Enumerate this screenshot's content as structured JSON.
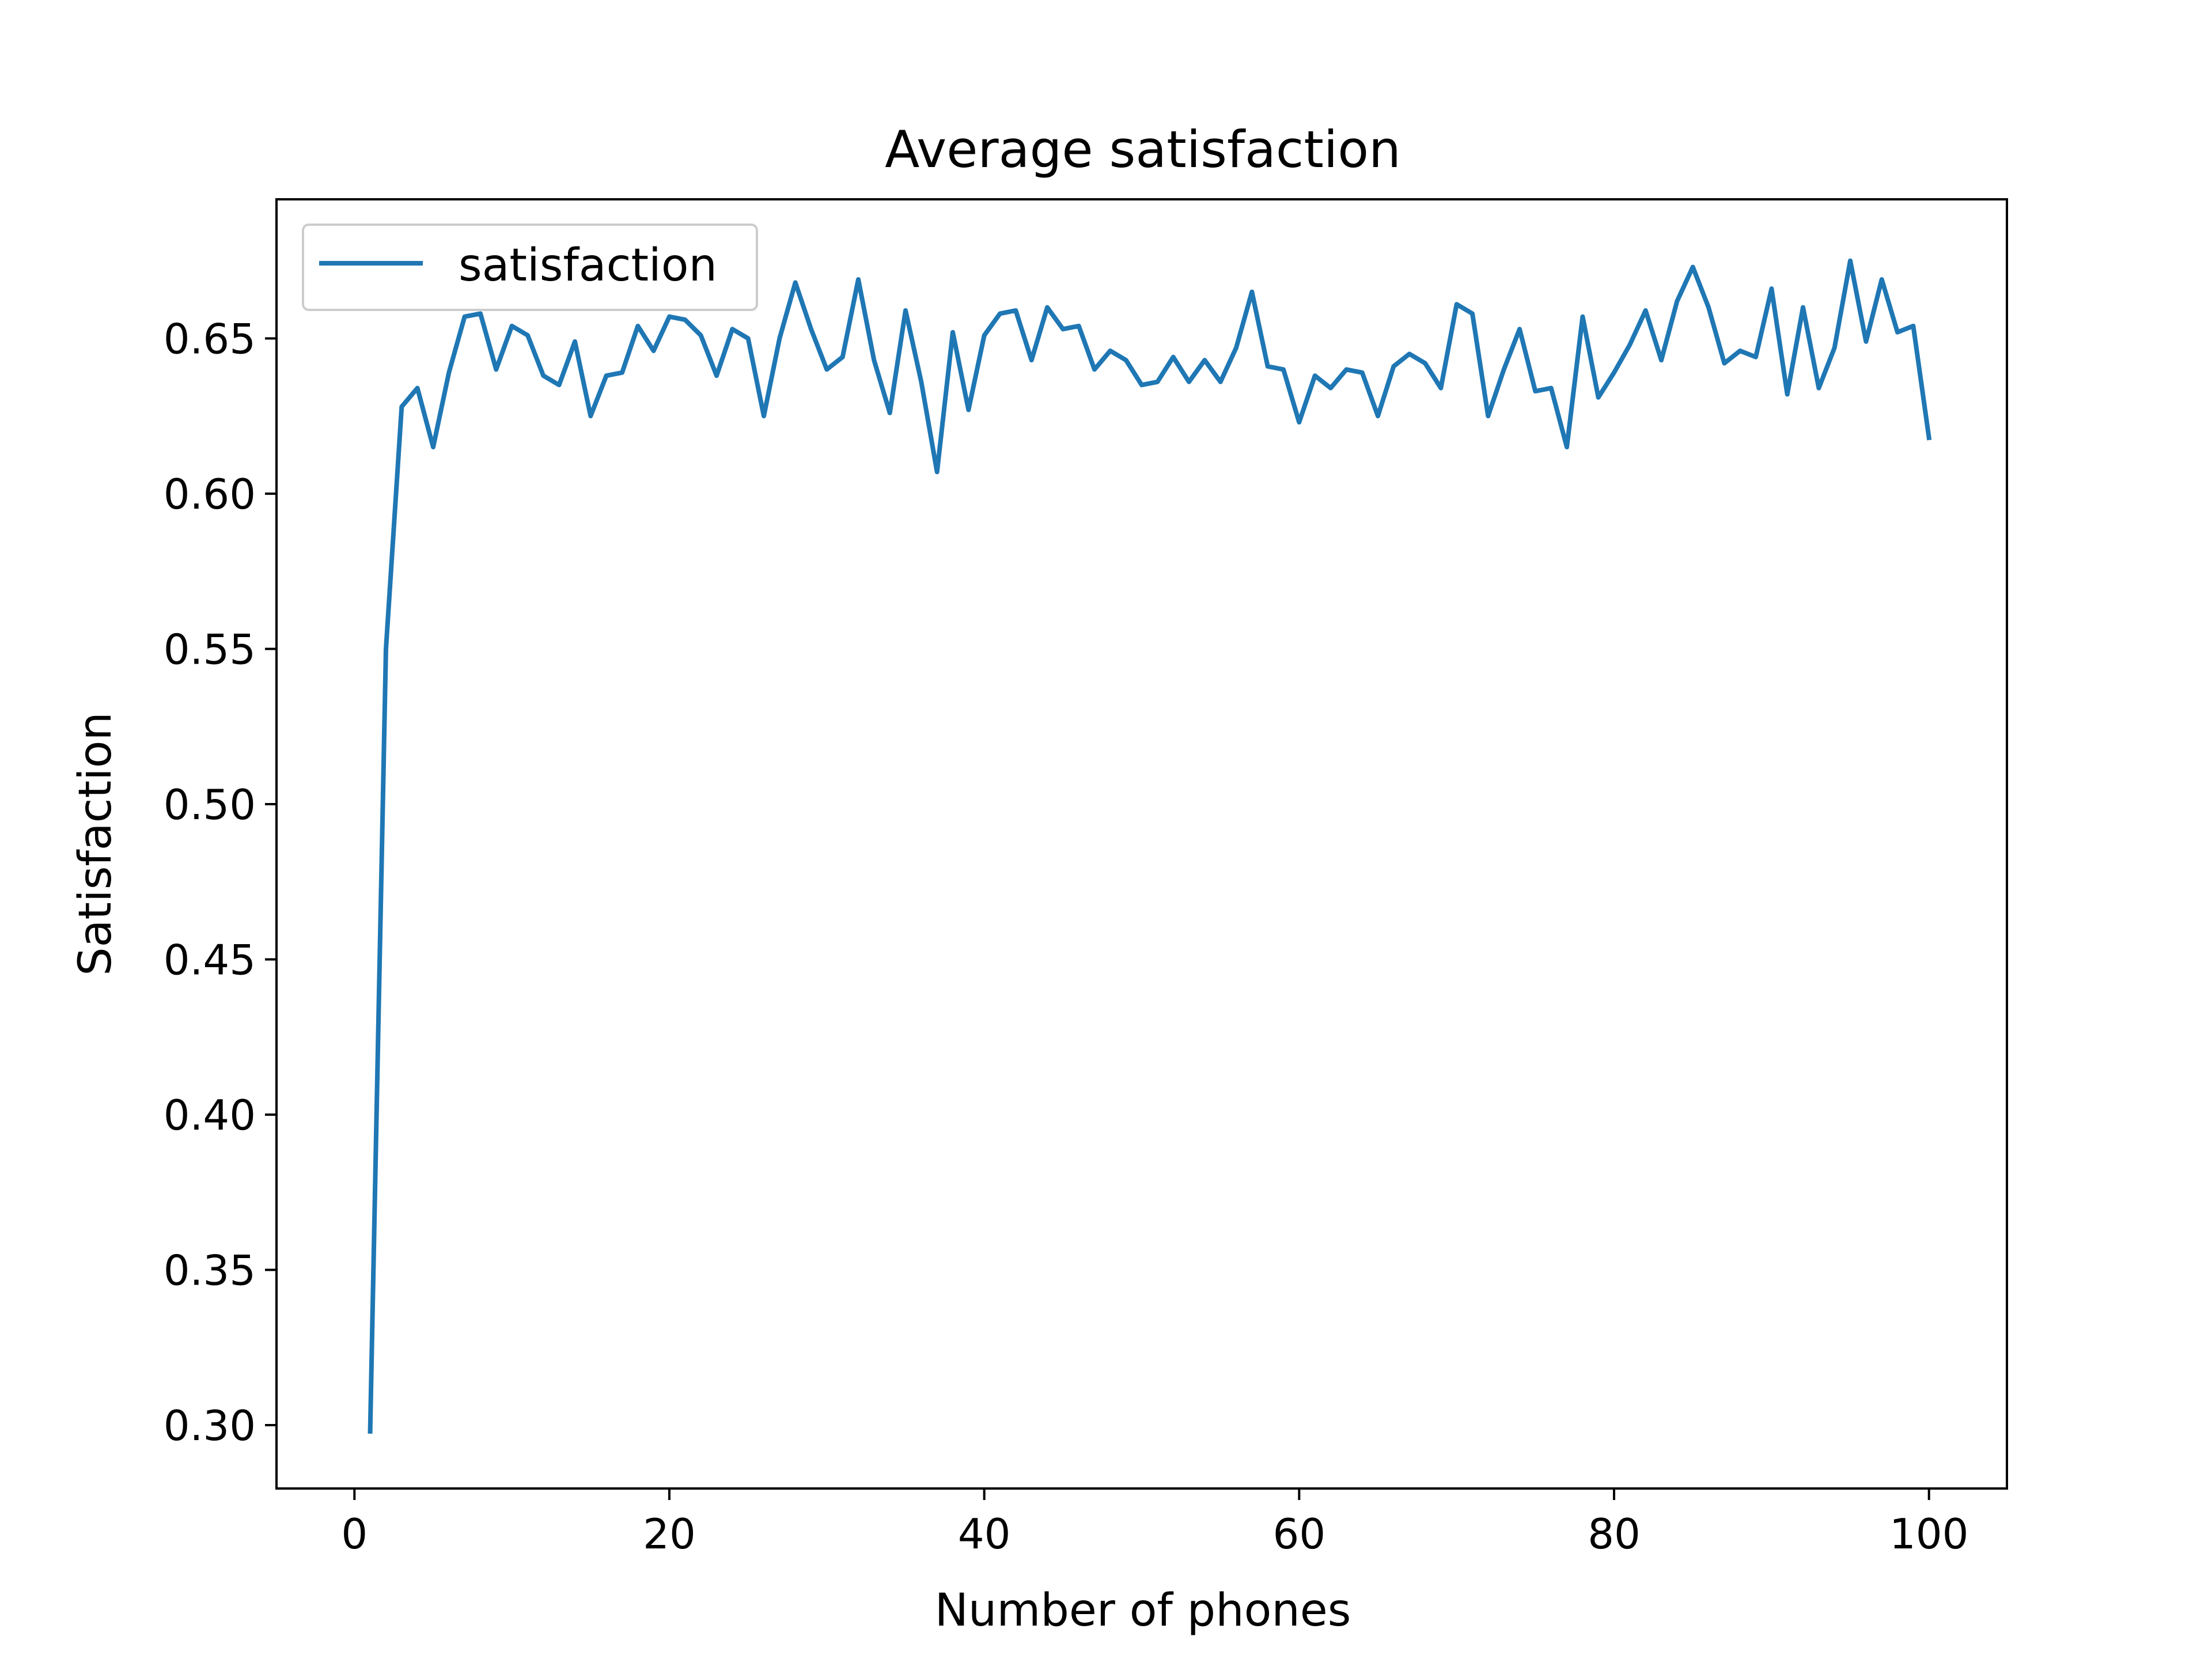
{
  "chart_data": {
    "type": "line",
    "title": "Average satisfaction",
    "xlabel": "Number of phones",
    "ylabel": "Satisfaction",
    "xlim": [
      -4.95,
      104.95
    ],
    "ylim": [
      0.2796,
      0.6948
    ],
    "xticks": [
      0,
      20,
      40,
      60,
      80,
      100
    ],
    "xtick_labels": [
      "0",
      "20",
      "40",
      "60",
      "80",
      "100"
    ],
    "yticks": [
      0.3,
      0.35,
      0.4,
      0.45,
      0.5,
      0.55,
      0.6,
      0.65
    ],
    "ytick_labels": [
      "0.30",
      "0.35",
      "0.40",
      "0.45",
      "0.50",
      "0.55",
      "0.60",
      "0.65"
    ],
    "grid": false,
    "legend": "upper-left",
    "series": [
      {
        "name": "satisfaction",
        "color": "#1f77b4",
        "x": [
          1,
          2,
          3,
          4,
          5,
          6,
          7,
          8,
          9,
          10,
          11,
          12,
          13,
          14,
          15,
          16,
          17,
          18,
          19,
          20,
          21,
          22,
          23,
          24,
          25,
          26,
          27,
          28,
          29,
          30,
          31,
          32,
          33,
          34,
          35,
          36,
          37,
          38,
          39,
          40,
          41,
          42,
          43,
          44,
          45,
          46,
          47,
          48,
          49,
          50,
          51,
          52,
          53,
          54,
          55,
          56,
          57,
          58,
          59,
          60,
          61,
          62,
          63,
          64,
          65,
          66,
          67,
          68,
          69,
          70,
          71,
          72,
          73,
          74,
          75,
          76,
          77,
          78,
          79,
          80,
          81,
          82,
          83,
          84,
          85,
          86,
          87,
          88,
          89,
          90,
          91,
          92,
          93,
          94,
          95,
          96,
          97,
          98,
          99,
          100
        ],
        "values": [
          0.298,
          0.55,
          0.628,
          0.634,
          0.615,
          0.639,
          0.657,
          0.658,
          0.64,
          0.654,
          0.651,
          0.638,
          0.635,
          0.649,
          0.625,
          0.638,
          0.639,
          0.654,
          0.646,
          0.657,
          0.656,
          0.651,
          0.638,
          0.653,
          0.65,
          0.625,
          0.65,
          0.668,
          0.653,
          0.64,
          0.644,
          0.669,
          0.643,
          0.626,
          0.659,
          0.636,
          0.607,
          0.652,
          0.627,
          0.651,
          0.658,
          0.659,
          0.643,
          0.66,
          0.653,
          0.654,
          0.64,
          0.646,
          0.643,
          0.635,
          0.636,
          0.644,
          0.636,
          0.643,
          0.636,
          0.647,
          0.665,
          0.641,
          0.64,
          0.623,
          0.638,
          0.634,
          0.64,
          0.639,
          0.625,
          0.641,
          0.645,
          0.642,
          0.634,
          0.661,
          0.658,
          0.625,
          0.64,
          0.653,
          0.633,
          0.634,
          0.615,
          0.657,
          0.631,
          0.639,
          0.648,
          0.659,
          0.643,
          0.662,
          0.673,
          0.66,
          0.642,
          0.646,
          0.644,
          0.666,
          0.632,
          0.66,
          0.634,
          0.647,
          0.675,
          0.649,
          0.669,
          0.652,
          0.654,
          0.618
        ]
      }
    ]
  }
}
